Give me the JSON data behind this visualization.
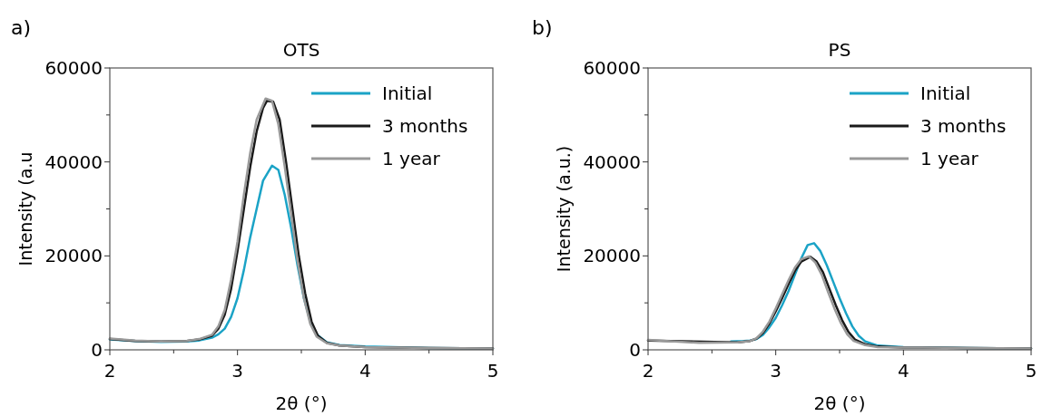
{
  "chart_data": [
    {
      "type": "line",
      "title": "OTS",
      "xlabel": "2θ (°)",
      "ylabel": "Intensity (a.u",
      "annotations": [
        "a)"
      ],
      "xlim": [
        2,
        5
      ],
      "ylim": [
        0,
        60000
      ],
      "xticks": [
        2,
        {
          "value": 2.5,
          "label": null
        },
        3,
        {
          "value": 3.5,
          "label": null
        },
        4,
        {
          "value": 4.5,
          "label": null
        },
        5
      ],
      "yticks": [
        0,
        {
          "value": 10000,
          "label": null
        },
        20000,
        {
          "value": 30000,
          "label": null
        },
        40000,
        {
          "value": 50000,
          "label": null
        },
        60000
      ],
      "grid": false,
      "legend": "top right",
      "marker": "none",
      "line_style": "solid",
      "series": [
        {
          "name": "Initial",
          "color": "#1ba3c6",
          "x": [
            2.0,
            2.2,
            2.4,
            2.6,
            2.7,
            2.8,
            2.85,
            2.9,
            2.95,
            3.0,
            3.05,
            3.1,
            3.15,
            3.2,
            3.27,
            3.32,
            3.37,
            3.42,
            3.47,
            3.52,
            3.57,
            3.62,
            3.7,
            3.8,
            4.0,
            4.5,
            5.0
          ],
          "values": [
            2200,
            1900,
            1700,
            1800,
            2000,
            2600,
            3300,
            4500,
            7000,
            11000,
            17000,
            24000,
            30000,
            36000,
            39200,
            38300,
            33000,
            26000,
            18000,
            11000,
            6000,
            3300,
            1600,
            1000,
            700,
            400,
            300
          ]
        },
        {
          "name": "3 months",
          "color": "#1a1a1a",
          "x": [
            2.0,
            2.2,
            2.4,
            2.6,
            2.7,
            2.8,
            2.85,
            2.9,
            2.95,
            3.0,
            3.05,
            3.1,
            3.15,
            3.2,
            3.23,
            3.28,
            3.33,
            3.38,
            3.43,
            3.48,
            3.53,
            3.58,
            3.63,
            3.7,
            3.8,
            4.0,
            4.5,
            5.0
          ],
          "values": [
            2300,
            1900,
            1800,
            1900,
            2200,
            3000,
            4500,
            7500,
            13000,
            21000,
            30000,
            39000,
            46500,
            51500,
            53000,
            52800,
            49000,
            40000,
            30000,
            20000,
            12000,
            6000,
            3000,
            1500,
            900,
            600,
            400,
            300
          ]
        },
        {
          "name": "1 year",
          "color": "#999999",
          "x": [
            2.0,
            2.2,
            2.4,
            2.6,
            2.7,
            2.8,
            2.85,
            2.9,
            2.95,
            3.0,
            3.05,
            3.1,
            3.15,
            3.22,
            3.27,
            3.32,
            3.37,
            3.42,
            3.47,
            3.52,
            3.57,
            3.62,
            3.7,
            3.8,
            4.0,
            4.5,
            5.0
          ],
          "values": [
            2400,
            2000,
            1800,
            1900,
            2300,
            3200,
            5000,
            8500,
            15000,
            23000,
            33000,
            42000,
            49000,
            53500,
            53000,
            48000,
            39000,
            29000,
            19000,
            11000,
            5500,
            2800,
            1400,
            900,
            600,
            400,
            300
          ]
        }
      ]
    },
    {
      "type": "line",
      "title": "PS",
      "xlabel": "2θ (°)",
      "ylabel": "Intensity (a.u.)",
      "annotations": [
        "b)"
      ],
      "xlim": [
        2,
        5
      ],
      "ylim": [
        0,
        60000
      ],
      "xticks": [
        2,
        {
          "value": 2.5,
          "label": null
        },
        3,
        {
          "value": 3.5,
          "label": null
        },
        4,
        {
          "value": 4.5,
          "label": null
        },
        5
      ],
      "yticks": [
        0,
        {
          "value": 10000,
          "label": null
        },
        20000,
        {
          "value": 30000,
          "label": null
        },
        40000,
        {
          "value": 50000,
          "label": null
        },
        60000
      ],
      "grid": false,
      "legend": "top right",
      "marker": "none",
      "line_style": "solid",
      "series": [
        {
          "name": "Initial",
          "color": "#1ba3c6",
          "x": [
            2.65,
            2.75,
            2.8,
            2.85,
            2.9,
            2.95,
            3.0,
            3.05,
            3.1,
            3.15,
            3.2,
            3.25,
            3.3,
            3.35,
            3.4,
            3.45,
            3.5,
            3.55,
            3.6,
            3.65,
            3.7,
            3.8,
            4.0,
            4.5,
            5.0
          ],
          "values": [
            1800,
            1900,
            2000,
            2300,
            3200,
            4800,
            6800,
            9500,
            12500,
            16000,
            19500,
            22300,
            22700,
            21000,
            18000,
            14500,
            11000,
            7800,
            5000,
            3000,
            1800,
            900,
            600,
            400,
            300
          ]
        },
        {
          "name": "3 months",
          "color": "#1a1a1a",
          "x": [
            2.0,
            2.7,
            2.8,
            2.85,
            2.9,
            2.95,
            3.0,
            3.05,
            3.1,
            3.15,
            3.2,
            3.27,
            3.32,
            3.37,
            3.42,
            3.47,
            3.52,
            3.57,
            3.62,
            3.7,
            3.8,
            4.0,
            4.5,
            5.0
          ],
          "values": [
            2000,
            1600,
            1900,
            2400,
            3600,
            5600,
            8200,
            11000,
            14000,
            16800,
            18800,
            19800,
            18800,
            16500,
            13000,
            9500,
            6300,
            3800,
            2200,
            1200,
            700,
            500,
            400,
            300
          ]
        },
        {
          "name": "1 year",
          "color": "#999999",
          "x": [
            2.0,
            2.4,
            2.7,
            2.8,
            2.85,
            2.9,
            2.95,
            3.0,
            3.05,
            3.1,
            3.15,
            3.2,
            3.26,
            3.31,
            3.36,
            3.41,
            3.46,
            3.51,
            3.56,
            3.61,
            3.7,
            3.8,
            4.0,
            4.5,
            5.0
          ],
          "values": [
            2100,
            1500,
            1600,
            1900,
            2500,
            3900,
            6000,
            8800,
            11800,
            14800,
            17500,
            19300,
            19900,
            18600,
            16000,
            12300,
            8800,
            5700,
            3300,
            1900,
            1000,
            600,
            500,
            400,
            300
          ]
        }
      ]
    }
  ]
}
